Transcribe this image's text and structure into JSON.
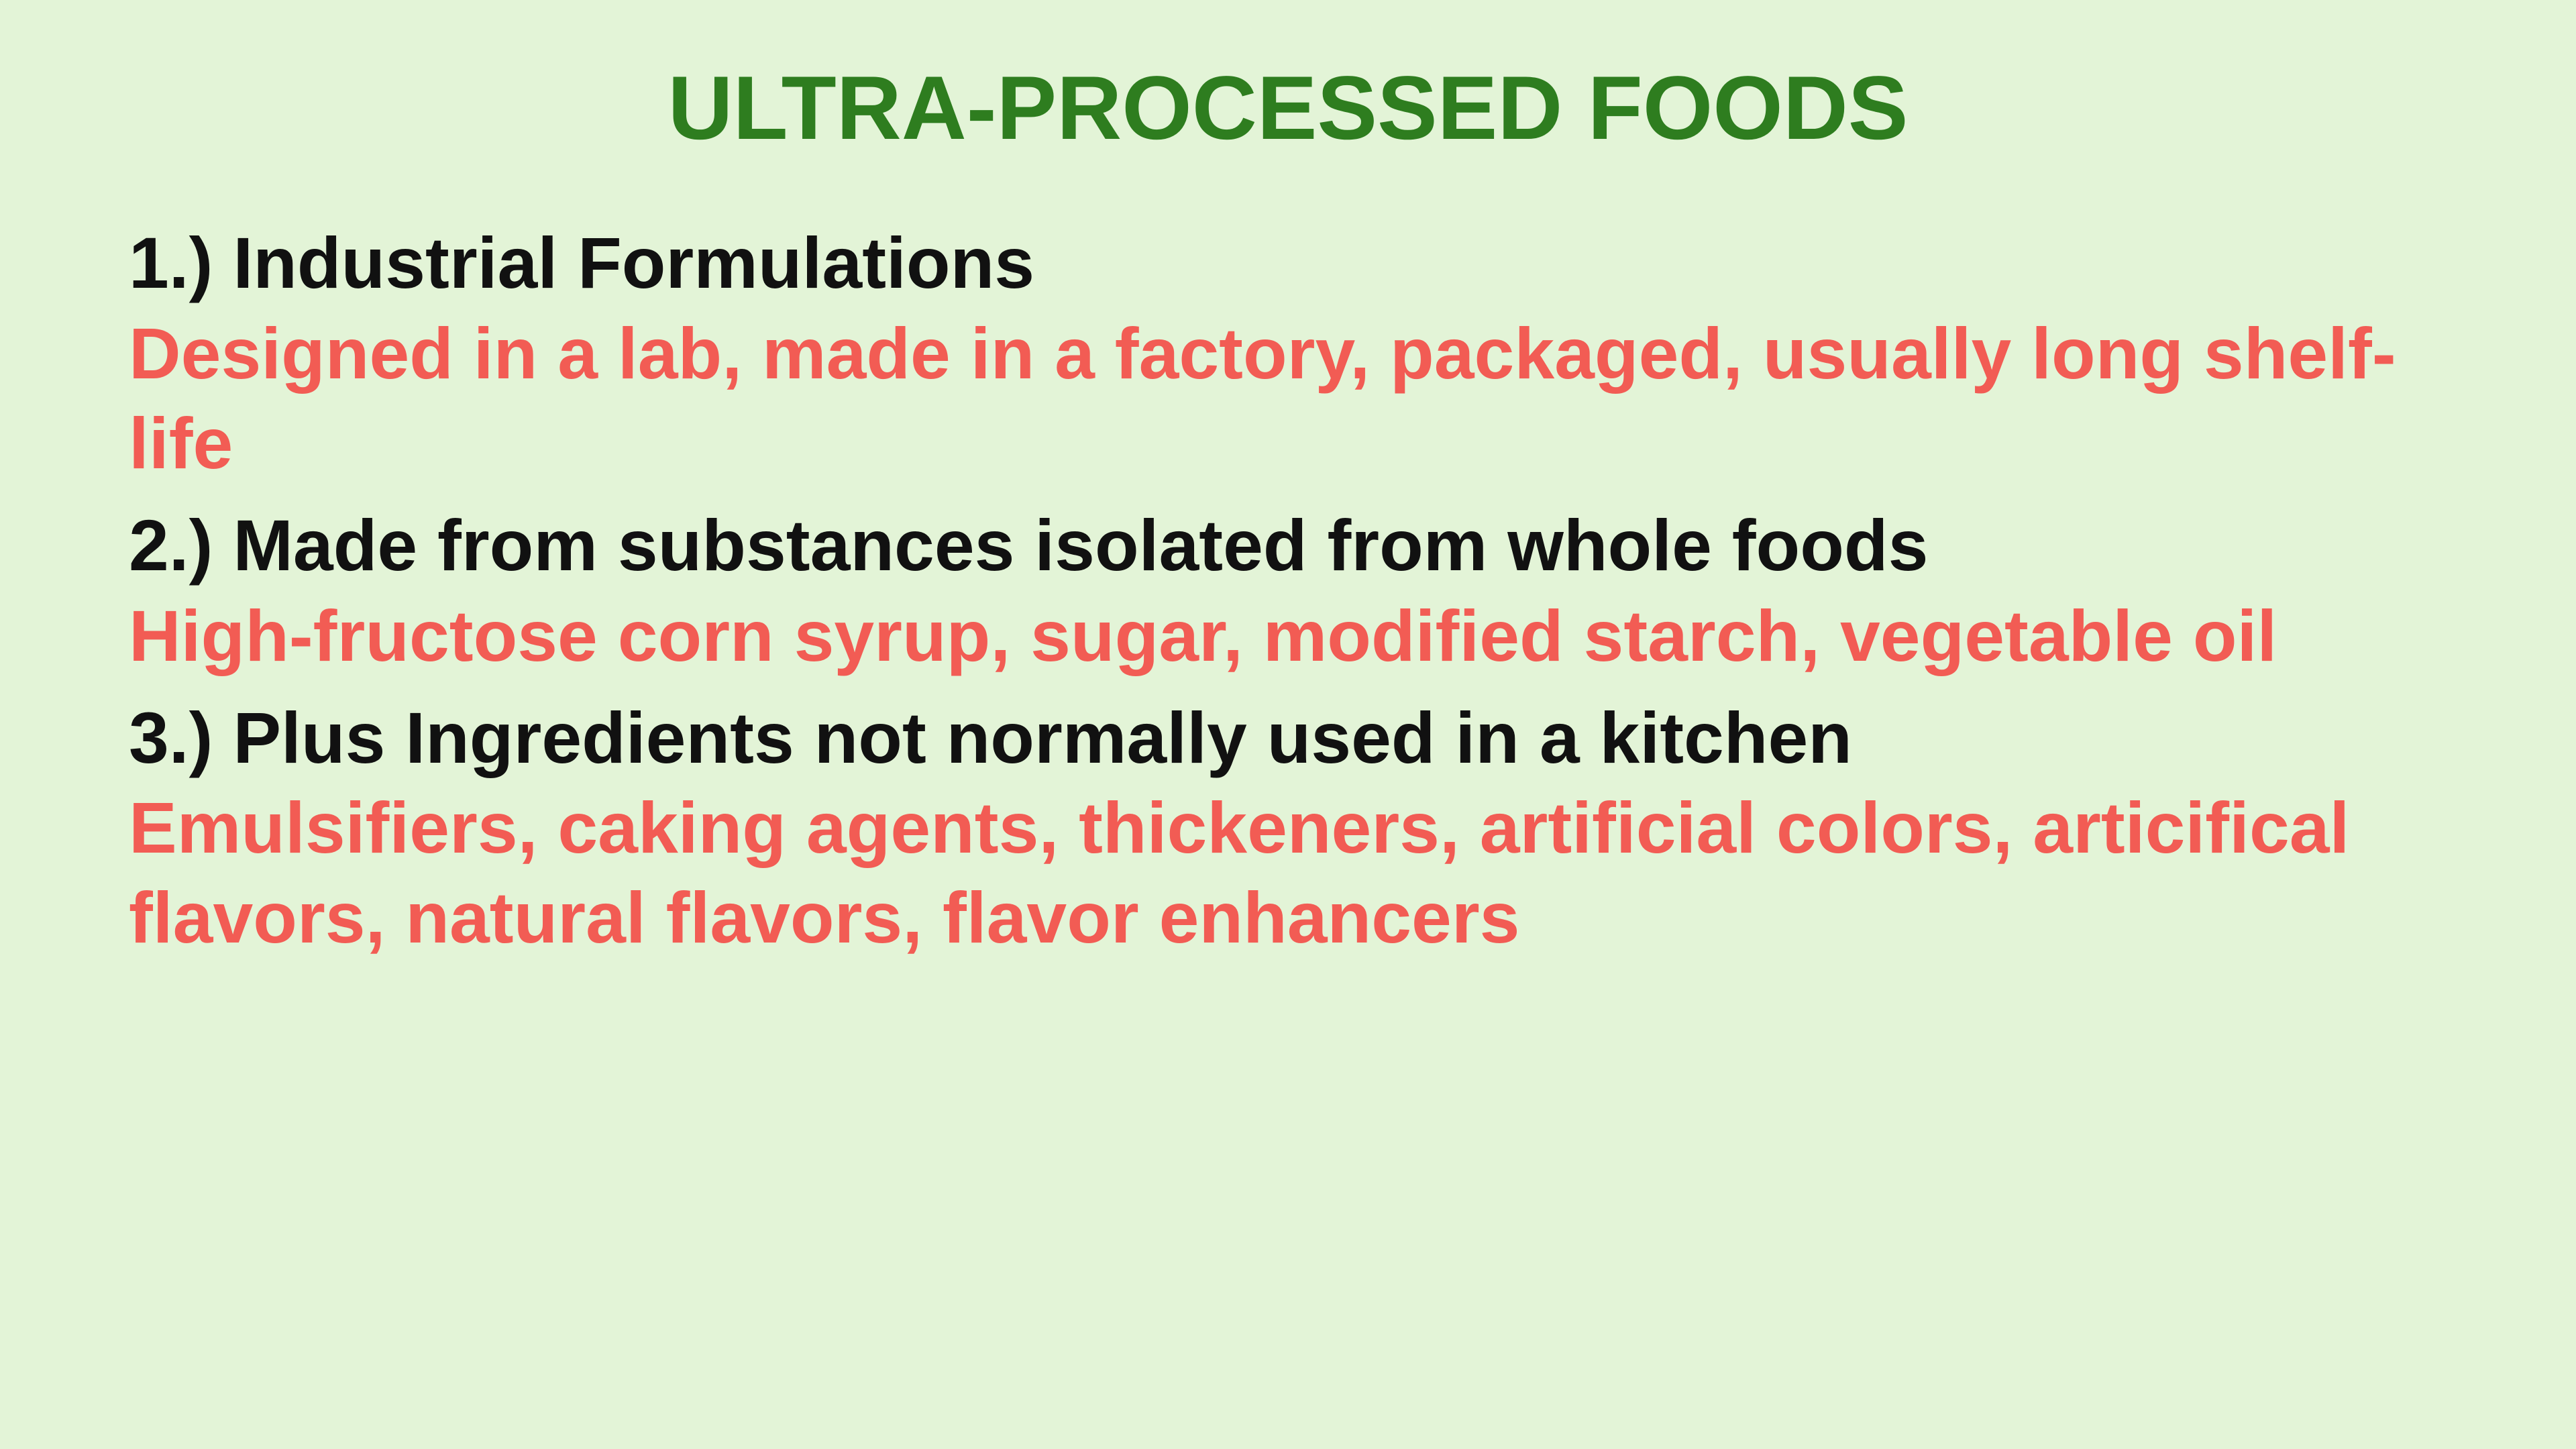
{
  "style": {
    "background_color": "#e3f4d7",
    "title_color": "#2e7d1f",
    "heading_color": "#111111",
    "desc_color": "#f25c54",
    "title_fontsize_vw": 3.5,
    "heading_fontsize_vw": 2.8,
    "desc_fontsize_vw": 2.8,
    "line_height": 1.25
  },
  "title": "ULTRA-PROCESSED FOODS",
  "items": [
    {
      "heading": "1.) Industrial Formulations",
      "desc": "Designed in a lab, made in a factory, packaged, usually long shelf-life"
    },
    {
      "heading": "2.) Made from substances isolated from whole foods",
      "desc": "High-fructose corn syrup, sugar, modified starch, vegetable oil"
    },
    {
      "heading": "3.) Plus Ingredients not normally used in a kitchen",
      "desc": "Emulsifiers, caking agents, thickeners, artificial colors, articifical flavors, natural flavors, flavor enhancers"
    }
  ]
}
